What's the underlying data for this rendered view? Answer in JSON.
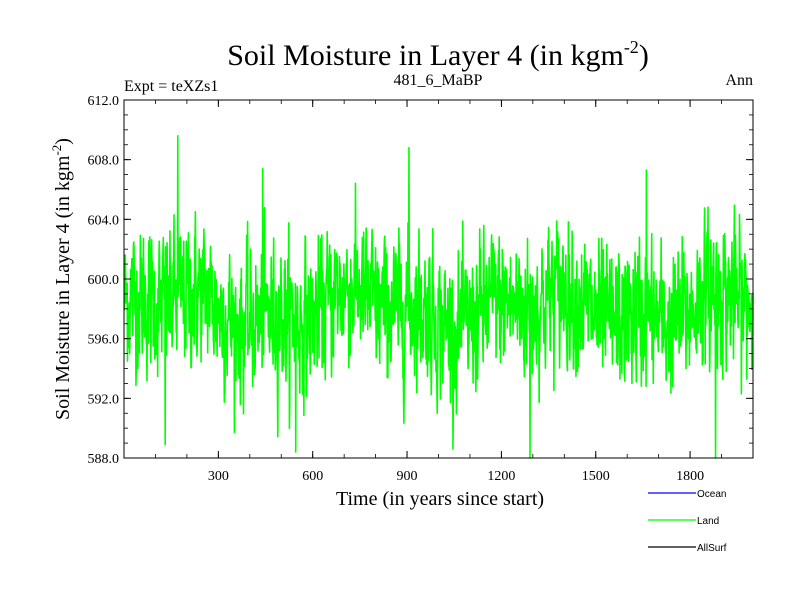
{
  "chart_data": {
    "type": "line",
    "title_main": "Soil Moisture in Layer 4 (in kgm",
    "title_sup": "-2",
    "title_close": ")",
    "subtitle_left": "Expt = teXZs1",
    "subtitle_center": "481_6_MaBP",
    "subtitle_right": "Ann",
    "xlabel": "Time (in years since start)",
    "ylabel_main": "Soil Moisture in Layer 4 (in kgm",
    "ylabel_sup": "-2",
    "ylabel_close": ")",
    "xlim": [
      0,
      2000
    ],
    "ylim": [
      588.0,
      612.0
    ],
    "xticks": [
      300,
      600,
      900,
      1200,
      1500,
      1800
    ],
    "xtick_labels": [
      "300",
      "600",
      "900",
      "1200",
      "1500",
      "1800"
    ],
    "yticks": [
      588.0,
      592.0,
      596.0,
      600.0,
      604.0,
      608.0,
      612.0
    ],
    "ytick_labels": [
      "588.0",
      "592.0",
      "596.0",
      "600.0",
      "604.0",
      "608.0",
      "612.0"
    ],
    "legend": [
      {
        "name": "Ocean",
        "color": "#0000ff"
      },
      {
        "name": "Land",
        "color": "#00ff00"
      },
      {
        "name": "AllSurf",
        "color": "#000000"
      }
    ],
    "series": [
      {
        "name": "Land",
        "color": "#00ff00",
        "mean": 598.0,
        "amplitude": 2.6,
        "n_points": 2000,
        "peaks": [
          {
            "x": 170,
            "y": 609.6
          },
          {
            "x": 905,
            "y": 608.8
          },
          {
            "x": 440,
            "y": 607.4
          },
          {
            "x": 1660,
            "y": 607.3
          },
          {
            "x": 1290,
            "y": 588.0
          },
          {
            "x": 1880,
            "y": 588.0
          },
          {
            "x": 545,
            "y": 588.4
          },
          {
            "x": 130,
            "y": 588.9
          }
        ]
      }
    ]
  }
}
